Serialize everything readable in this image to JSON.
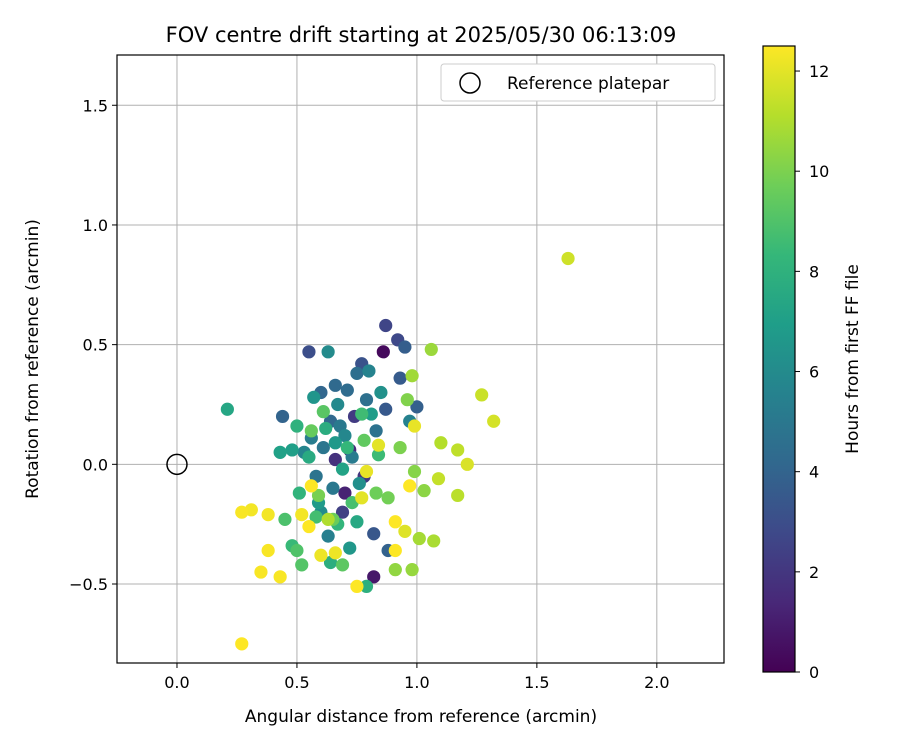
{
  "chart_data": {
    "type": "scatter",
    "title": "FOV centre drift starting at 2025/05/30 06:13:09",
    "xlabel": "Angular distance from reference (arcmin)",
    "ylabel": "Rotation from reference (arcmin)",
    "xlim": [
      -0.25,
      2.28
    ],
    "ylim": [
      -0.83,
      1.71
    ],
    "xticks": [
      0.0,
      0.5,
      1.0,
      1.5,
      2.0
    ],
    "xtick_labels": [
      "0.0",
      "0.5",
      "1.0",
      "1.5",
      "2.0"
    ],
    "yticks": [
      -0.5,
      0.0,
      0.5,
      1.0,
      1.5
    ],
    "ytick_labels": [
      "−0.5",
      "0.0",
      "0.5",
      "1.0",
      "1.5"
    ],
    "grid": true,
    "legend": {
      "position": "top-right",
      "entries": [
        "Reference platepar"
      ]
    },
    "reference": {
      "x": 0.0,
      "y": 0.0,
      "label": "Reference platepar"
    },
    "colorbar": {
      "label": "Hours from first FF file",
      "colormap": "viridis",
      "min": 0,
      "max": 12.5,
      "ticks": [
        0,
        2,
        4,
        6,
        8,
        10,
        12
      ],
      "tick_labels": [
        "0",
        "2",
        "4",
        "6",
        "8",
        "10",
        "12"
      ]
    },
    "colormap_stops": [
      "#440154",
      "#482878",
      "#3e4989",
      "#31688e",
      "#26828e",
      "#1f9e89",
      "#35b779",
      "#6ece58",
      "#b5de2b",
      "#fde725"
    ],
    "points": [
      {
        "x": 0.86,
        "y": 0.47,
        "t": 0.3
      },
      {
        "x": 0.82,
        "y": -0.47,
        "t": 0.8
      },
      {
        "x": 0.7,
        "y": -0.12,
        "t": 1.2
      },
      {
        "x": 0.72,
        "y": 0.06,
        "t": 1.5
      },
      {
        "x": 0.66,
        "y": 0.02,
        "t": 1.8
      },
      {
        "x": 0.78,
        "y": -0.05,
        "t": 2.0
      },
      {
        "x": 0.74,
        "y": 0.2,
        "t": 2.2
      },
      {
        "x": 0.69,
        "y": -0.2,
        "t": 2.4
      },
      {
        "x": 0.87,
        "y": 0.58,
        "t": 2.6
      },
      {
        "x": 0.92,
        "y": 0.52,
        "t": 2.8
      },
      {
        "x": 0.55,
        "y": 0.47,
        "t": 3.0
      },
      {
        "x": 0.77,
        "y": 0.42,
        "t": 3.2
      },
      {
        "x": 0.82,
        "y": -0.29,
        "t": 3.4
      },
      {
        "x": 0.87,
        "y": 0.23,
        "t": 3.5
      },
      {
        "x": 0.93,
        "y": 0.36,
        "t": 3.6
      },
      {
        "x": 0.95,
        "y": 0.49,
        "t": 3.7
      },
      {
        "x": 1.0,
        "y": 0.24,
        "t": 3.8
      },
      {
        "x": 0.88,
        "y": -0.36,
        "t": 3.9
      },
      {
        "x": 0.44,
        "y": 0.2,
        "t": 4.0
      },
      {
        "x": 0.6,
        "y": 0.3,
        "t": 4.1
      },
      {
        "x": 0.64,
        "y": 0.18,
        "t": 4.2
      },
      {
        "x": 0.66,
        "y": 0.33,
        "t": 4.3
      },
      {
        "x": 0.71,
        "y": 0.31,
        "t": 4.4
      },
      {
        "x": 0.75,
        "y": 0.38,
        "t": 4.5
      },
      {
        "x": 0.79,
        "y": 0.27,
        "t": 4.6
      },
      {
        "x": 0.83,
        "y": 0.14,
        "t": 4.7
      },
      {
        "x": 0.58,
        "y": -0.05,
        "t": 4.8
      },
      {
        "x": 0.61,
        "y": 0.07,
        "t": 4.9
      },
      {
        "x": 0.65,
        "y": -0.1,
        "t": 5.0
      },
      {
        "x": 0.68,
        "y": 0.16,
        "t": 5.1
      },
      {
        "x": 0.73,
        "y": 0.03,
        "t": 5.2
      },
      {
        "x": 0.56,
        "y": 0.11,
        "t": 5.3
      },
      {
        "x": 0.63,
        "y": -0.3,
        "t": 5.4
      },
      {
        "x": 0.97,
        "y": 0.18,
        "t": 5.5
      },
      {
        "x": 0.8,
        "y": 0.39,
        "t": 5.6
      },
      {
        "x": 0.53,
        "y": 0.05,
        "t": 5.7
      },
      {
        "x": 0.7,
        "y": 0.12,
        "t": 5.8
      },
      {
        "x": 0.67,
        "y": 0.25,
        "t": 5.9
      },
      {
        "x": 0.63,
        "y": 0.47,
        "t": 6.0
      },
      {
        "x": 0.6,
        "y": -0.2,
        "t": 6.1
      },
      {
        "x": 0.76,
        "y": -0.08,
        "t": 6.2
      },
      {
        "x": 0.85,
        "y": 0.3,
        "t": 6.3
      },
      {
        "x": 0.57,
        "y": 0.28,
        "t": 6.5
      },
      {
        "x": 0.72,
        "y": -0.35,
        "t": 6.6
      },
      {
        "x": 0.66,
        "y": 0.09,
        "t": 6.7
      },
      {
        "x": 0.59,
        "y": -0.16,
        "t": 6.8
      },
      {
        "x": 0.81,
        "y": 0.21,
        "t": 6.9
      },
      {
        "x": 0.48,
        "y": 0.06,
        "t": 7.0
      },
      {
        "x": 0.43,
        "y": 0.05,
        "t": 7.1
      },
      {
        "x": 0.69,
        "y": -0.02,
        "t": 7.2
      },
      {
        "x": 0.21,
        "y": 0.23,
        "t": 7.4
      },
      {
        "x": 0.75,
        "y": -0.24,
        "t": 7.5
      },
      {
        "x": 0.55,
        "y": 0.03,
        "t": 7.6
      },
      {
        "x": 0.62,
        "y": 0.15,
        "t": 7.7
      },
      {
        "x": 0.64,
        "y": -0.41,
        "t": 7.8
      },
      {
        "x": 0.79,
        "y": -0.51,
        "t": 7.9
      },
      {
        "x": 0.5,
        "y": 0.16,
        "t": 8.0
      },
      {
        "x": 0.51,
        "y": -0.12,
        "t": 8.1
      },
      {
        "x": 0.67,
        "y": -0.25,
        "t": 8.2
      },
      {
        "x": 0.71,
        "y": 0.07,
        "t": 8.3
      },
      {
        "x": 0.48,
        "y": -0.34,
        "t": 8.4
      },
      {
        "x": 0.84,
        "y": 0.04,
        "t": 8.5
      },
      {
        "x": 0.77,
        "y": 0.21,
        "t": 8.6
      },
      {
        "x": 0.58,
        "y": -0.22,
        "t": 8.7
      },
      {
        "x": 0.73,
        "y": -0.16,
        "t": 8.8
      },
      {
        "x": 0.45,
        "y": -0.23,
        "t": 8.9
      },
      {
        "x": 0.5,
        "y": -0.36,
        "t": 9.0
      },
      {
        "x": 0.52,
        "y": -0.42,
        "t": 9.1
      },
      {
        "x": 0.61,
        "y": 0.22,
        "t": 9.2
      },
      {
        "x": 0.69,
        "y": -0.42,
        "t": 9.3
      },
      {
        "x": 0.78,
        "y": 0.1,
        "t": 9.4
      },
      {
        "x": 0.56,
        "y": 0.14,
        "t": 9.5
      },
      {
        "x": 0.65,
        "y": -0.23,
        "t": 9.6
      },
      {
        "x": 0.83,
        "y": -0.12,
        "t": 9.7
      },
      {
        "x": 0.88,
        "y": -0.14,
        "t": 9.8
      },
      {
        "x": 0.59,
        "y": -0.13,
        "t": 9.9
      },
      {
        "x": 0.93,
        "y": 0.07,
        "t": 10.0
      },
      {
        "x": 0.96,
        "y": 0.27,
        "t": 10.1
      },
      {
        "x": 0.99,
        "y": -0.03,
        "t": 10.2
      },
      {
        "x": 1.03,
        "y": -0.11,
        "t": 10.3
      },
      {
        "x": 0.91,
        "y": -0.44,
        "t": 10.4
      },
      {
        "x": 0.98,
        "y": -0.44,
        "t": 10.5
      },
      {
        "x": 1.06,
        "y": 0.48,
        "t": 10.6
      },
      {
        "x": 0.98,
        "y": 0.37,
        "t": 10.7
      },
      {
        "x": 1.01,
        "y": -0.31,
        "t": 10.8
      },
      {
        "x": 1.07,
        "y": -0.32,
        "t": 10.9
      },
      {
        "x": 0.63,
        "y": -0.23,
        "t": 11.0
      },
      {
        "x": 1.1,
        "y": 0.09,
        "t": 11.1
      },
      {
        "x": 1.17,
        "y": -0.13,
        "t": 11.2
      },
      {
        "x": 1.17,
        "y": 0.06,
        "t": 11.3
      },
      {
        "x": 1.09,
        "y": -0.06,
        "t": 11.4
      },
      {
        "x": 1.27,
        "y": 0.29,
        "t": 11.5
      },
      {
        "x": 1.63,
        "y": 0.86,
        "t": 11.6
      },
      {
        "x": 1.32,
        "y": 0.18,
        "t": 11.7
      },
      {
        "x": 1.21,
        "y": 0.0,
        "t": 11.8
      },
      {
        "x": 0.95,
        "y": -0.28,
        "t": 11.9
      },
      {
        "x": 0.77,
        "y": -0.14,
        "t": 12.0
      },
      {
        "x": 0.84,
        "y": 0.08,
        "t": 12.0
      },
      {
        "x": 0.79,
        "y": -0.03,
        "t": 12.1
      },
      {
        "x": 0.99,
        "y": 0.16,
        "t": 12.1
      },
      {
        "x": 0.66,
        "y": -0.37,
        "t": 12.2
      },
      {
        "x": 0.6,
        "y": -0.38,
        "t": 12.2
      },
      {
        "x": 0.52,
        "y": -0.21,
        "t": 12.3
      },
      {
        "x": 0.38,
        "y": -0.21,
        "t": 12.3
      },
      {
        "x": 0.31,
        "y": -0.19,
        "t": 12.3
      },
      {
        "x": 0.27,
        "y": -0.2,
        "t": 12.4
      },
      {
        "x": 0.38,
        "y": -0.36,
        "t": 12.4
      },
      {
        "x": 0.35,
        "y": -0.45,
        "t": 12.4
      },
      {
        "x": 0.43,
        "y": -0.47,
        "t": 12.4
      },
      {
        "x": 0.27,
        "y": -0.75,
        "t": 12.5
      },
      {
        "x": 0.75,
        "y": -0.51,
        "t": 12.5
      },
      {
        "x": 0.56,
        "y": -0.09,
        "t": 12.5
      },
      {
        "x": 0.55,
        "y": -0.26,
        "t": 12.5
      },
      {
        "x": 0.91,
        "y": -0.36,
        "t": 12.5
      },
      {
        "x": 0.91,
        "y": -0.24,
        "t": 12.5
      },
      {
        "x": 0.97,
        "y": -0.09,
        "t": 12.5
      }
    ]
  }
}
